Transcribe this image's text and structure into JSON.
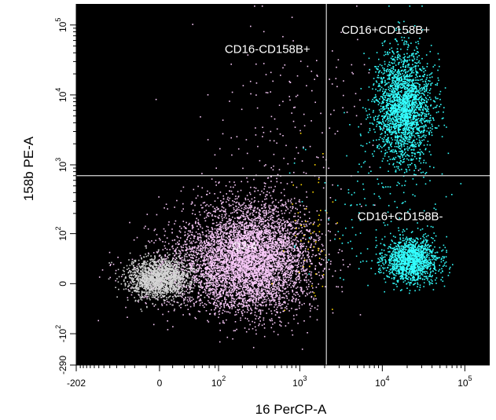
{
  "chart_data": {
    "type": "scatter",
    "title": "",
    "xlabel": "16 PerCP-A",
    "ylabel": "158b PE-A",
    "x_scale": "biexponential",
    "y_scale": "biexponential",
    "xlim": [
      -202,
      200000
    ],
    "ylim": [
      -290,
      200000
    ],
    "x_ticks": [
      {
        "value": -202,
        "label": "-202"
      },
      {
        "value": 0,
        "label": "0"
      },
      {
        "value": 100,
        "label": "10",
        "exp": "2"
      },
      {
        "value": 1000,
        "label": "10",
        "exp": "3"
      },
      {
        "value": 10000,
        "label": "10",
        "exp": "4"
      },
      {
        "value": 100000,
        "label": "10",
        "exp": "5"
      }
    ],
    "y_ticks": [
      {
        "value": -290,
        "label": "-290"
      },
      {
        "value": -100,
        "label": "-10",
        "exp": "2"
      },
      {
        "value": 0,
        "label": "0"
      },
      {
        "value": 100,
        "label": "10",
        "exp": "2"
      },
      {
        "value": 1000,
        "label": "10",
        "exp": "3"
      },
      {
        "value": 10000,
        "label": "10",
        "exp": "4"
      },
      {
        "value": 100000,
        "label": "10",
        "exp": "5"
      }
    ],
    "gates": {
      "x": 2100,
      "y": 700
    },
    "quadrant_labels": [
      {
        "text": "CD16-CD158B+",
        "x": 120,
        "y": 40000
      },
      {
        "text": "CD16+CD158B+",
        "x": 3200,
        "y": 75000
      },
      {
        "text": "CD16+CD158B-",
        "x": 5000,
        "y": 160
      }
    ],
    "population_label": {
      "text": "Q3-4",
      "x": 150,
      "y": 55
    },
    "series": [
      {
        "color": "#f5c6f5",
        "clusters": [
          {
            "cx": 270,
            "cy": 45,
            "sx": 75,
            "sy": 70,
            "n": 4200
          },
          {
            "cx": 120,
            "cy": 20,
            "sx": 100,
            "sy": 60,
            "n": 1800
          },
          {
            "cx": 900,
            "cy": 5000,
            "sx": 120,
            "sy": 130,
            "n": 170
          }
        ]
      },
      {
        "color": "#d4d4d4",
        "clusters": [
          {
            "cx": 0,
            "cy": 8,
            "sx": 40,
            "sy": 25,
            "n": 1700
          }
        ]
      },
      {
        "color": "#33ffff",
        "clusters": [
          {
            "cx": 18000,
            "cy": 7000,
            "sx": 35,
            "sy": 70,
            "n": 2300
          },
          {
            "cx": 22000,
            "cy": 35,
            "sx": 35,
            "sy": 28,
            "n": 1400
          },
          {
            "cx": 10000,
            "cy": 300,
            "sx": 90,
            "sy": 110,
            "n": 150
          }
        ]
      },
      {
        "color": "#ffd800",
        "clusters": [
          {
            "cx": 1500,
            "cy": 120,
            "sx": 30,
            "sy": 100,
            "n": 55
          }
        ]
      }
    ]
  }
}
